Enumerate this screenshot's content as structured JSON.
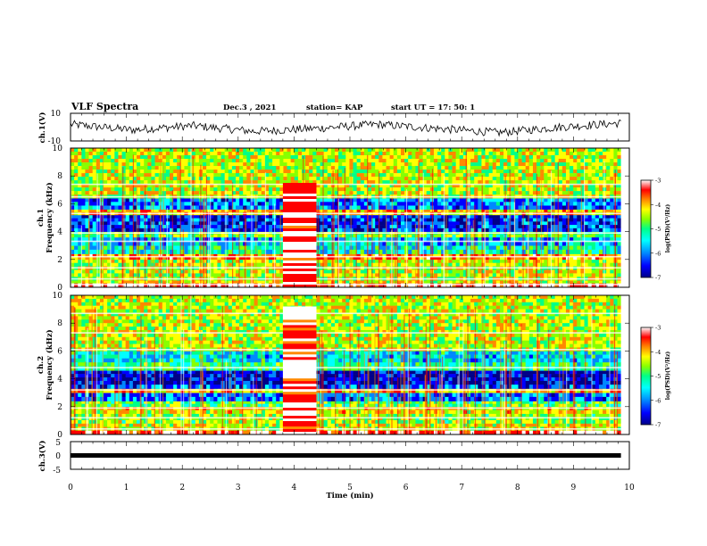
{
  "header": {
    "title": "VLF Spectra",
    "date": "Dec.3 , 2021",
    "station": "station= KAP",
    "start": "start UT = 17: 50: 1"
  },
  "colorbar": {
    "label": "log(PSD)(V²/Hz)",
    "ticks": [
      "-3",
      "-4",
      "-5",
      "-6",
      "-7"
    ]
  },
  "palette": [
    "#000088",
    "#0000ff",
    "#0088ff",
    "#00ffff",
    "#00ff88",
    "#88ff00",
    "#ffff00",
    "#ff8800",
    "#ff0000",
    "#ffffff"
  ],
  "chart_data": [
    {
      "type": "line",
      "panel": "ch1-waveform",
      "ylabel": "ch.1(V)",
      "ylim": [
        -10,
        10
      ],
      "yticks": [
        "10",
        "-10"
      ],
      "xlim": [
        0,
        10
      ],
      "x_end": 9.85,
      "series": [
        {
          "values": [
            2,
            -2,
            1,
            -3,
            -1,
            2,
            -1,
            -4,
            0,
            3
          ]
        }
      ]
    },
    {
      "type": "heatmap",
      "panel": "ch1-spectrogram",
      "ylabel": [
        "ch.1",
        "Frequency (kHz)"
      ],
      "ylim": [
        0,
        10
      ],
      "yticks": [
        "0",
        "2",
        "4",
        "6",
        "8",
        "10"
      ],
      "xlim": [
        0,
        10
      ],
      "x_end": 9.85,
      "zlim": [
        -7,
        -3
      ],
      "bands": [
        {
          "f": [
            0,
            0.3
          ],
          "z": -3.3
        },
        {
          "f": [
            0.3,
            0.5
          ],
          "z": -4.5
        },
        {
          "f": [
            0.5,
            2.0
          ],
          "z": -4.6
        },
        {
          "f": [
            2.0,
            2.4
          ],
          "z": -4.0
        },
        {
          "f": [
            2.4,
            3.0
          ],
          "z": -5.4
        },
        {
          "f": [
            3.0,
            3.6
          ],
          "z": -5.8
        },
        {
          "f": [
            3.6,
            4.0
          ],
          "z": -5.0
        },
        {
          "f": [
            4.0,
            5.2
          ],
          "z": -6.3
        },
        {
          "f": [
            5.2,
            5.6
          ],
          "z": -4.2
        },
        {
          "f": [
            5.6,
            6.4
          ],
          "z": -6.0
        },
        {
          "f": [
            6.4,
            10
          ],
          "z": -4.6
        }
      ],
      "burst": {
        "t": [
          3.8,
          4.4
        ],
        "f": [
          0,
          7.5
        ],
        "z": -3.4
      },
      "lines_khz": [
        0.2,
        0.6,
        1.4,
        2.2,
        3.3,
        3.9,
        5.3,
        6.5,
        7.4
      ]
    },
    {
      "type": "heatmap",
      "panel": "ch2-spectrogram",
      "ylabel": [
        "ch.2",
        "Frequency (kHz)"
      ],
      "ylim": [
        0,
        10
      ],
      "yticks": [
        "0",
        "2",
        "4",
        "6",
        "8",
        "10"
      ],
      "xlim": [
        0,
        10
      ],
      "x_end": 9.85,
      "zlim": [
        -7,
        -3
      ],
      "bands": [
        {
          "f": [
            0,
            0.3
          ],
          "z": -3.3
        },
        {
          "f": [
            0.3,
            0.8
          ],
          "z": -4.5
        },
        {
          "f": [
            0.8,
            1.5
          ],
          "z": -4.8
        },
        {
          "f": [
            1.5,
            2.0
          ],
          "z": -4.4
        },
        {
          "f": [
            2.0,
            2.4
          ],
          "z": -5.0
        },
        {
          "f": [
            2.4,
            3.0
          ],
          "z": -6.0
        },
        {
          "f": [
            3.0,
            3.3
          ],
          "z": -4.2
        },
        {
          "f": [
            3.3,
            3.6
          ],
          "z": -6.2
        },
        {
          "f": [
            3.6,
            4.6
          ],
          "z": -6.6
        },
        {
          "f": [
            4.6,
            5.2
          ],
          "z": -5.2
        },
        {
          "f": [
            5.2,
            6.0
          ],
          "z": -5.6
        },
        {
          "f": [
            6.0,
            10
          ],
          "z": -4.6
        }
      ],
      "burst": {
        "t": [
          3.8,
          4.4
        ],
        "f": [
          0,
          9.2
        ],
        "z": -3.5
      },
      "lines_khz": [
        0.4,
        1.2,
        1.9,
        3.2,
        4.8,
        6.1,
        7.3,
        8.7
      ]
    },
    {
      "type": "line",
      "panel": "ch3-waveform",
      "ylabel": "ch.3(V)",
      "ylim": [
        -5,
        5
      ],
      "yticks": [
        "5",
        "0",
        "-5"
      ],
      "xlim": [
        0,
        10
      ],
      "xticks": [
        "0",
        "1",
        "2",
        "3",
        "4",
        "5",
        "6",
        "7",
        "8",
        "9",
        "10"
      ],
      "xlabel": "Time (min)",
      "x_end": 9.85,
      "series": [
        {
          "values": [
            0,
            0
          ]
        }
      ]
    }
  ]
}
